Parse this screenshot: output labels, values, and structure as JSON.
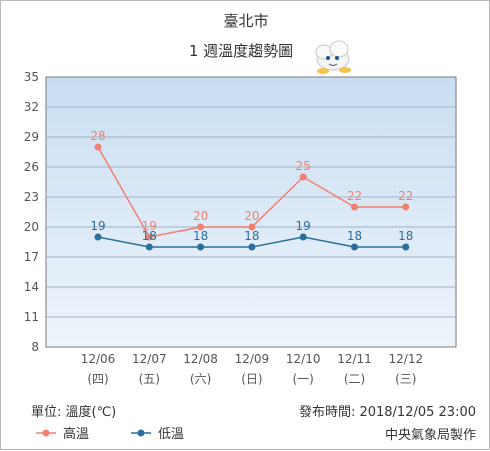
{
  "chart_data": {
    "type": "line",
    "title": "臺北市",
    "subtitle": "1 週溫度趨勢圖",
    "ylim": [
      8,
      35
    ],
    "yticks": [
      8,
      11,
      14,
      17,
      20,
      23,
      26,
      29,
      32,
      35
    ],
    "categories": [
      [
        "12/06",
        "(四)"
      ],
      [
        "12/07",
        "(五)"
      ],
      [
        "12/08",
        "(六)"
      ],
      [
        "12/09",
        "(日)"
      ],
      [
        "12/10",
        "(一)"
      ],
      [
        "12/11",
        "(二)"
      ],
      [
        "12/12",
        "(三)"
      ]
    ],
    "series": [
      {
        "name": "高溫",
        "values": [
          28,
          19,
          20,
          20,
          25,
          22,
          22
        ],
        "color": "#f08070"
      },
      {
        "name": "低溫",
        "values": [
          19,
          18,
          18,
          18,
          19,
          18,
          18
        ],
        "color": "#2a6e9e"
      }
    ],
    "grid": true,
    "legend": "bottom-left"
  },
  "footer": {
    "unit": "單位: 溫度(℃)",
    "published": "發布時間: 2018/12/05 23:00",
    "source": "中央氣象局製作"
  },
  "icon": "cloud-mascot-icon"
}
